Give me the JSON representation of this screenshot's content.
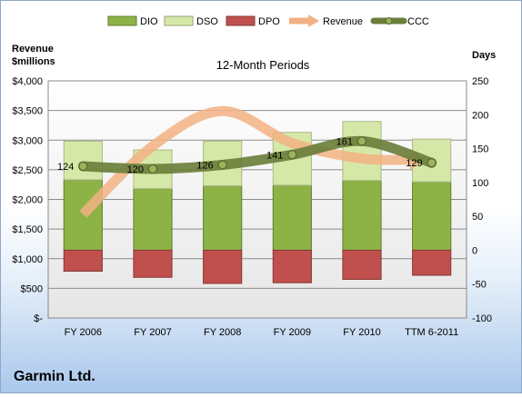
{
  "chart_data": {
    "type": "bar",
    "title": "12-Month Periods",
    "categories": [
      "FY 2006",
      "FY 2007",
      "FY 2008",
      "FY 2009",
      "FY 2010",
      "TTM 6-2011"
    ],
    "left_axis": {
      "label_lines": [
        "Revenue",
        "$millions"
      ],
      "ylim": [
        0,
        4000
      ],
      "ticks": [
        0,
        500,
        1000,
        1500,
        2000,
        2500,
        3000,
        3500,
        4000
      ],
      "tick_labels": [
        "$-",
        "$500",
        "$1,000",
        "$1,500",
        "$2,000",
        "$2,500",
        "$3,000",
        "$3,500",
        "$4,000"
      ]
    },
    "right_axis": {
      "label": "Days",
      "ylim": [
        -100,
        250
      ],
      "ticks": [
        -100,
        -50,
        0,
        50,
        100,
        150,
        200,
        250
      ]
    },
    "grid": true,
    "legend_position": "top",
    "series": [
      {
        "name": "DIO",
        "kind": "bar-stack",
        "axis": "right",
        "color": "#8db347",
        "values": [
          104,
          91,
          95,
          96,
          103,
          101
        ]
      },
      {
        "name": "DSO",
        "kind": "bar-stack",
        "axis": "right",
        "color": "#d6e8a8",
        "values": [
          57,
          57,
          66,
          78,
          87,
          63
        ]
      },
      {
        "name": "DPO",
        "kind": "bar-stack",
        "axis": "right",
        "color": "#c0504d",
        "values": [
          -31,
          -40,
          -49,
          -48,
          -43,
          -37
        ]
      },
      {
        "name": "Revenue",
        "kind": "line",
        "axis": "left",
        "color": "#f2b183",
        "values": [
          1750,
          2900,
          3490,
          2950,
          2690,
          2670
        ]
      },
      {
        "name": "CCC",
        "kind": "line",
        "axis": "right",
        "color": "#6b7f3c",
        "values": [
          124,
          120,
          126,
          141,
          161,
          129
        ]
      }
    ],
    "data_labels": [
      "124",
      "120",
      "126",
      "141",
      "161",
      "129"
    ]
  },
  "footer": {
    "company": "Garmin Ltd."
  }
}
